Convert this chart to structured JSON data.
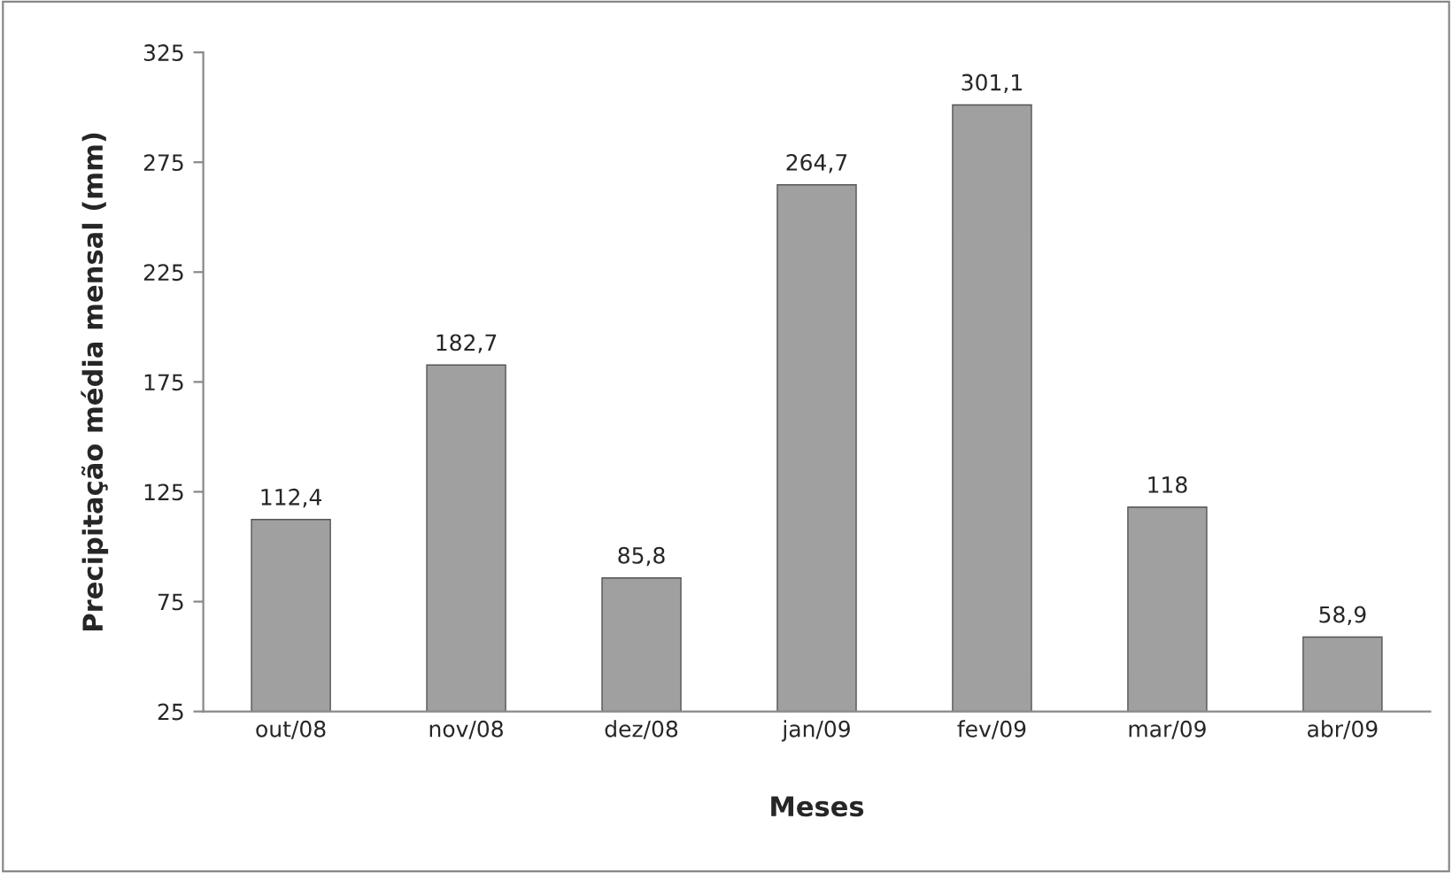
{
  "chart_data": {
    "type": "bar",
    "xlabel": "Meses",
    "ylabel": "Precipitação média mensal (mm)",
    "categories": [
      "out/08",
      "nov/08",
      "dez/08",
      "jan/09",
      "fev/09",
      "mar/09",
      "abr/09"
    ],
    "values": [
      112.4,
      182.7,
      85.8,
      264.7,
      301.1,
      118,
      58.9
    ],
    "value_labels": [
      "112,4",
      "182,7",
      "85,8",
      "264,7",
      "301,1",
      "118",
      "58,9"
    ],
    "color": "#a0a0a0",
    "ylim": [
      25,
      325
    ],
    "yticks": [
      25,
      75,
      125,
      175,
      225,
      275,
      325
    ],
    "grid": false,
    "legend": false
  }
}
